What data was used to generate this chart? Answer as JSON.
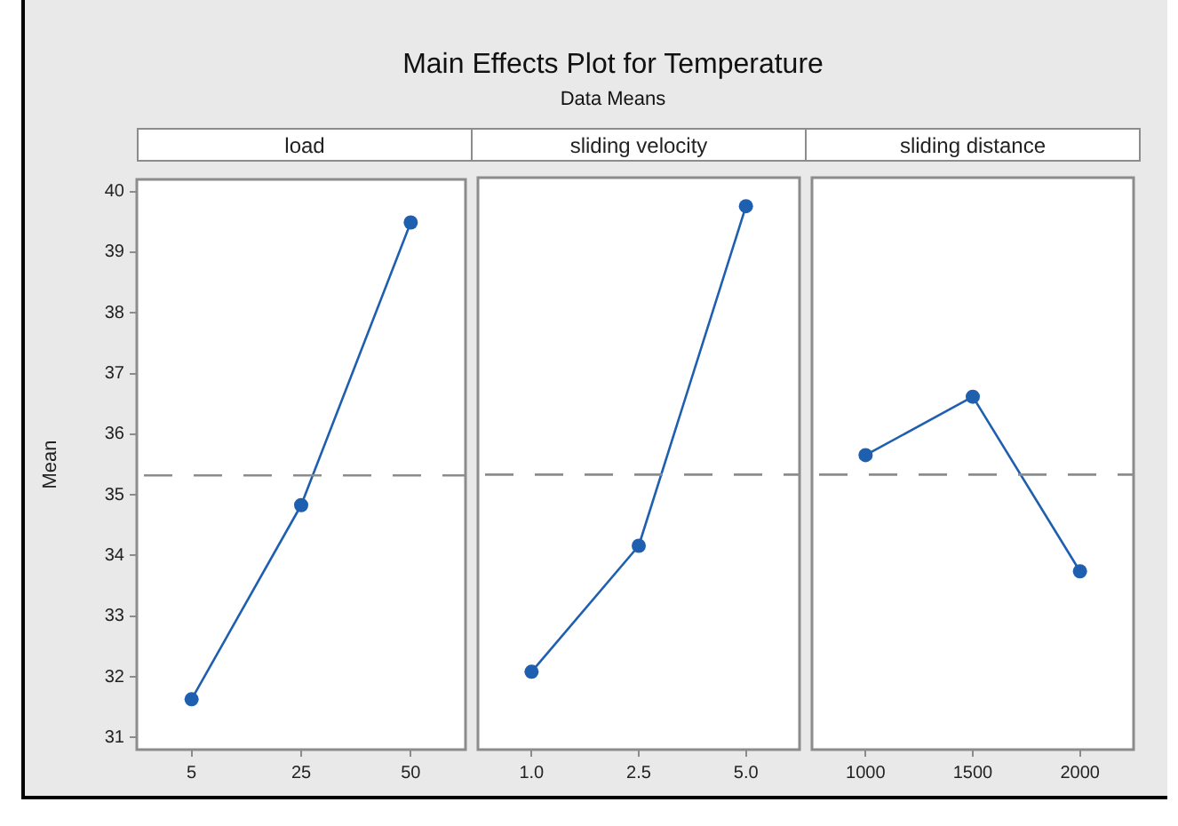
{
  "chart_data": [
    {
      "type": "other",
      "title": "Main Effects Plot for Temperature",
      "subtitle": "Data Means"
    },
    {
      "type": "line",
      "xlabel": "load",
      "ylabel": "Mean",
      "categories": [
        "5",
        "25",
        "50"
      ],
      "series": [
        {
          "color": "#1f5fb0",
          "values": [
            31.63,
            34.83,
            39.49
          ]
        }
      ],
      "ylim": [
        30.8,
        40.2
      ],
      "yticks": [
        31,
        32,
        33,
        34,
        35,
        36,
        37,
        38,
        39,
        40
      ],
      "grid": false,
      "legend": false,
      "marker": "circle",
      "line_style": "solid",
      "ref_lines": [
        {
          "axis": "y",
          "value": 35.32,
          "color": "#8c8c8c",
          "line_style": "dashed"
        }
      ]
    },
    {
      "type": "line",
      "xlabel": "sliding velocity",
      "categories": [
        "1.0",
        "2.5",
        "5.0"
      ],
      "series": [
        {
          "color": "#1f5fb0",
          "values": [
            32.08,
            34.15,
            39.73
          ]
        }
      ],
      "ylim": [
        30.8,
        40.2
      ],
      "tick_labels": "x",
      "grid": false,
      "legend": false,
      "marker": "circle",
      "line_style": "solid",
      "ref_lines": [
        {
          "axis": "y",
          "value": 35.32,
          "color": "#8c8c8c",
          "line_style": "dashed"
        }
      ]
    },
    {
      "type": "line",
      "xlabel": "sliding distance",
      "categories": [
        "1000",
        "1500",
        "2000"
      ],
      "series": [
        {
          "color": "#1f5fb0",
          "values": [
            35.64,
            36.6,
            33.73
          ]
        }
      ],
      "ylim": [
        30.8,
        40.2
      ],
      "tick_labels": "x",
      "grid": false,
      "legend": false,
      "marker": "circle",
      "line_style": "solid",
      "ref_lines": [
        {
          "axis": "y",
          "value": 35.32,
          "color": "#8c8c8c",
          "line_style": "dashed"
        }
      ]
    }
  ]
}
